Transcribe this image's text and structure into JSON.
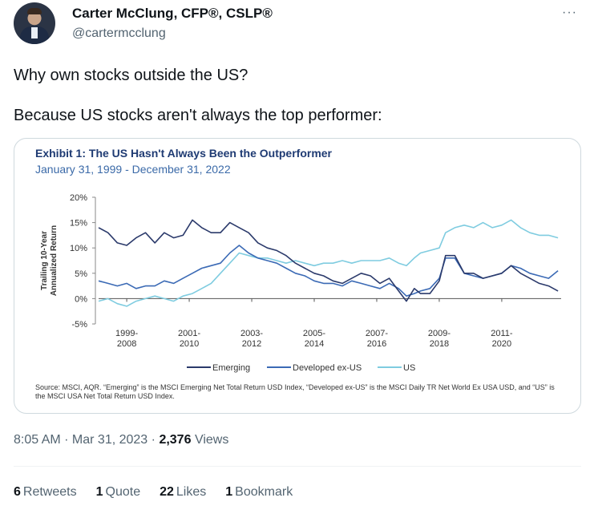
{
  "author": {
    "name": "Carter McClung, CFP®, CSLP®",
    "handle": "@cartermcclung"
  },
  "more_label": "···",
  "tweet": {
    "line1": "Why own stocks outside the US?",
    "line2": "Because US stocks aren't always the top performer:"
  },
  "chart_data": {
    "type": "line",
    "title": "Exhibit 1: The US Hasn't Always Been the Outperformer",
    "subtitle": "January 31, 1999 - December 31, 2022",
    "ylabel": "Trailing 10-Year Annualized Return",
    "ylim": [
      -5,
      20
    ],
    "yticks": [
      "20%",
      "15%",
      "10%",
      "5%",
      "0%",
      "-5%"
    ],
    "xlim": [
      2008.1,
      2022.9
    ],
    "xticks": [
      {
        "x": 2009,
        "top": "1999-",
        "bottom": "2008"
      },
      {
        "x": 2011,
        "top": "2001-",
        "bottom": "2010"
      },
      {
        "x": 2013,
        "top": "2003-",
        "bottom": "2012"
      },
      {
        "x": 2015,
        "top": "2005-",
        "bottom": "2014"
      },
      {
        "x": 2017,
        "top": "2007-",
        "bottom": "2016"
      },
      {
        "x": 2019,
        "top": "2009-",
        "bottom": "2018"
      },
      {
        "x": 2021,
        "top": "2011-",
        "bottom": "2020"
      }
    ],
    "series": [
      {
        "name": "Emerging",
        "color": "#2b3a6b",
        "x": [
          2008.1,
          2008.4,
          2008.7,
          2009.0,
          2009.3,
          2009.6,
          2009.9,
          2010.2,
          2010.5,
          2010.8,
          2011.1,
          2011.4,
          2011.7,
          2012.0,
          2012.3,
          2012.6,
          2012.9,
          2013.2,
          2013.5,
          2013.8,
          2014.1,
          2014.4,
          2014.7,
          2015.0,
          2015.3,
          2015.6,
          2015.9,
          2016.2,
          2016.5,
          2016.8,
          2017.1,
          2017.4,
          2017.7,
          2017.95,
          2018.2,
          2018.4,
          2018.7,
          2019.0,
          2019.2,
          2019.5,
          2019.8,
          2020.1,
          2020.4,
          2020.7,
          2021.0,
          2021.3,
          2021.6,
          2021.9,
          2022.2,
          2022.5,
          2022.8
        ],
        "y": [
          14,
          13,
          11,
          10.5,
          12,
          13,
          11,
          13,
          12,
          12.5,
          15.5,
          14,
          13,
          13,
          15,
          14,
          13,
          11,
          10,
          9.5,
          8.5,
          7,
          6,
          5,
          4.5,
          3.5,
          3,
          4,
          5,
          4.5,
          3,
          4,
          1.5,
          -0.5,
          2,
          1,
          1,
          3.5,
          8.5,
          8.5,
          5,
          5,
          4,
          4.5,
          5,
          6.5,
          5,
          4,
          3,
          2.5,
          1.5
        ]
      },
      {
        "name": "Developed ex-US",
        "color": "#3b6ab5",
        "x": [
          2008.1,
          2008.4,
          2008.7,
          2009.0,
          2009.3,
          2009.6,
          2009.9,
          2010.2,
          2010.5,
          2010.8,
          2011.1,
          2011.4,
          2011.7,
          2012.0,
          2012.3,
          2012.6,
          2012.9,
          2013.2,
          2013.5,
          2013.8,
          2014.1,
          2014.4,
          2014.7,
          2015.0,
          2015.3,
          2015.6,
          2015.9,
          2016.2,
          2016.5,
          2016.8,
          2017.1,
          2017.4,
          2017.7,
          2017.95,
          2018.2,
          2018.4,
          2018.7,
          2019.0,
          2019.2,
          2019.5,
          2019.8,
          2020.1,
          2020.4,
          2020.7,
          2021.0,
          2021.3,
          2021.6,
          2021.9,
          2022.2,
          2022.5,
          2022.8
        ],
        "y": [
          3.5,
          3,
          2.5,
          3,
          2,
          2.5,
          2.5,
          3.5,
          3,
          4,
          5,
          6,
          6.5,
          7,
          9,
          10.5,
          9,
          8,
          7.5,
          7,
          6,
          5,
          4.5,
          3.5,
          3,
          3,
          2.5,
          3.5,
          3,
          2.5,
          2,
          3,
          2,
          0.5,
          1,
          1.5,
          2,
          4,
          8,
          8,
          5,
          4.5,
          4,
          4.5,
          5,
          6.5,
          6,
          5,
          4.5,
          4,
          5.5
        ]
      },
      {
        "name": "US",
        "color": "#7fcce0",
        "x": [
          2008.1,
          2008.4,
          2008.7,
          2009.0,
          2009.3,
          2009.6,
          2009.9,
          2010.2,
          2010.5,
          2010.8,
          2011.1,
          2011.4,
          2011.7,
          2012.0,
          2012.3,
          2012.6,
          2012.9,
          2013.2,
          2013.5,
          2013.8,
          2014.1,
          2014.4,
          2014.7,
          2015.0,
          2015.3,
          2015.6,
          2015.9,
          2016.2,
          2016.5,
          2016.8,
          2017.1,
          2017.4,
          2017.7,
          2017.95,
          2018.2,
          2018.4,
          2018.7,
          2019.0,
          2019.2,
          2019.5,
          2019.8,
          2020.1,
          2020.4,
          2020.7,
          2021.0,
          2021.3,
          2021.6,
          2021.9,
          2022.2,
          2022.5,
          2022.8
        ],
        "y": [
          -0.5,
          0,
          -1,
          -1.5,
          -0.5,
          0,
          0.5,
          0,
          -0.5,
          0.5,
          1,
          2,
          3,
          5,
          7,
          9,
          8.5,
          8,
          8,
          7.5,
          7,
          7.5,
          7,
          6.5,
          7,
          7,
          7.5,
          7,
          7.5,
          7.5,
          7.5,
          8,
          7,
          6.5,
          8,
          9,
          9.5,
          10,
          13,
          14,
          14.5,
          14,
          15,
          14,
          14.5,
          15.5,
          14,
          13,
          12.5,
          12.5,
          12
        ]
      }
    ],
    "legend": [
      "Emerging",
      "Developed ex-US",
      "US"
    ],
    "source": "Source: MSCI, AQR. “Emerging” is the MSCI Emerging Net Total Return USD Index, “Developed ex-US” is the MSCI Daily TR Net World Ex USA USD, and “US” is the MSCI USA Net Total Return USD Index."
  },
  "meta": {
    "time_date": "8:05 AM · Mar 31, 2023 ·",
    "views_count": "2,376",
    "views_label": "Views"
  },
  "stats": [
    {
      "count": "6",
      "label": "Retweets"
    },
    {
      "count": "1",
      "label": "Quote"
    },
    {
      "count": "22",
      "label": "Likes"
    },
    {
      "count": "1",
      "label": "Bookmark"
    }
  ]
}
